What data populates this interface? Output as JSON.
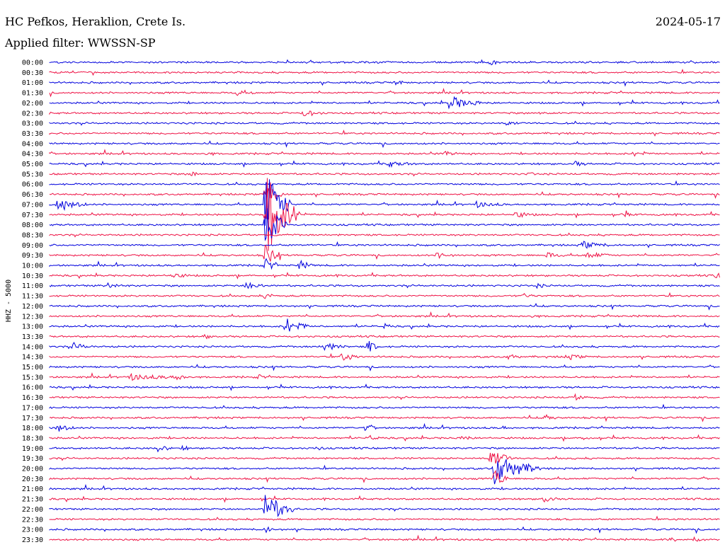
{
  "header": {
    "station": "HC Pefkos, Heraklion, Crete Is.",
    "date": "2024-05-17",
    "filter": "Applied filter: WWSSN-SP"
  },
  "chart_data": {
    "type": "line",
    "title": "HC Pefkos, Heraklion, Crete Is.",
    "subtitle": "Applied filter: WWSSN-SP",
    "ylabel": "HHZ - 5000",
    "colors": {
      "odd_trace": "#0000dd",
      "even_trace": "#ee1144"
    },
    "traces": [
      {
        "label": "00:00",
        "color": "#0000dd",
        "events": []
      },
      {
        "label": "00:30",
        "color": "#ee1144",
        "events": []
      },
      {
        "label": "01:00",
        "color": "#0000dd",
        "events": []
      },
      {
        "label": "01:30",
        "color": "#ee1144",
        "events": []
      },
      {
        "label": "02:00",
        "color": "#0000dd",
        "events": []
      },
      {
        "label": "02:30",
        "color": "#ee1144",
        "events": []
      },
      {
        "label": "03:00",
        "color": "#0000dd",
        "events": []
      },
      {
        "label": "03:30",
        "color": "#ee1144",
        "events": []
      },
      {
        "label": "04:00",
        "color": "#0000dd",
        "events": []
      },
      {
        "label": "04:30",
        "color": "#ee1144",
        "events": []
      },
      {
        "label": "05:00",
        "color": "#0000dd",
        "events": []
      },
      {
        "label": "05:30",
        "color": "#ee1144",
        "events": []
      },
      {
        "label": "06:00",
        "color": "#0000dd",
        "events": []
      },
      {
        "label": "06:30",
        "color": "#ee1144",
        "events": []
      },
      {
        "label": "07:00",
        "color": "#0000dd",
        "events": []
      },
      {
        "label": "07:30",
        "color": "#ee1144",
        "events": []
      },
      {
        "label": "08:00",
        "color": "#0000dd",
        "events": []
      },
      {
        "label": "08:30",
        "color": "#ee1144",
        "events": []
      },
      {
        "label": "09:00",
        "color": "#0000dd",
        "events": []
      },
      {
        "label": "09:30",
        "color": "#ee1144",
        "events": []
      },
      {
        "label": "10:00",
        "color": "#0000dd",
        "events": []
      },
      {
        "label": "10:30",
        "color": "#ee1144",
        "events": []
      },
      {
        "label": "11:00",
        "color": "#0000dd",
        "events": []
      },
      {
        "label": "11:30",
        "color": "#ee1144",
        "events": []
      },
      {
        "label": "12:00",
        "color": "#0000dd",
        "events": []
      },
      {
        "label": "12:30",
        "color": "#ee1144",
        "events": []
      },
      {
        "label": "13:00",
        "color": "#0000dd",
        "events": []
      },
      {
        "label": "13:30",
        "color": "#ee1144",
        "events": []
      },
      {
        "label": "14:00",
        "color": "#0000dd",
        "events": []
      },
      {
        "label": "14:30",
        "color": "#ee1144",
        "events": []
      },
      {
        "label": "15:00",
        "color": "#0000dd",
        "events": []
      },
      {
        "label": "15:30",
        "color": "#ee1144",
        "events": []
      },
      {
        "label": "16:00",
        "color": "#0000dd",
        "events": []
      },
      {
        "label": "16:30",
        "color": "#ee1144",
        "events": []
      },
      {
        "label": "17:00",
        "color": "#0000dd",
        "events": []
      },
      {
        "label": "17:30",
        "color": "#ee1144",
        "events": []
      },
      {
        "label": "18:00",
        "color": "#0000dd",
        "events": []
      },
      {
        "label": "18:30",
        "color": "#ee1144",
        "events": []
      },
      {
        "label": "19:00",
        "color": "#0000dd",
        "events": []
      },
      {
        "label": "19:30",
        "color": "#ee1144",
        "events": []
      },
      {
        "label": "20:00",
        "color": "#0000dd",
        "events": []
      },
      {
        "label": "20:30",
        "color": "#ee1144",
        "events": []
      },
      {
        "label": "21:00",
        "color": "#0000dd",
        "events": []
      },
      {
        "label": "21:30",
        "color": "#ee1144",
        "events": []
      },
      {
        "label": "22:00",
        "color": "#0000dd",
        "events": []
      },
      {
        "label": "22:30",
        "color": "#ee1144",
        "events": []
      },
      {
        "label": "23:00",
        "color": "#0000dd",
        "events": []
      },
      {
        "label": "23:30",
        "color": "#ee1144",
        "events": []
      }
    ]
  }
}
